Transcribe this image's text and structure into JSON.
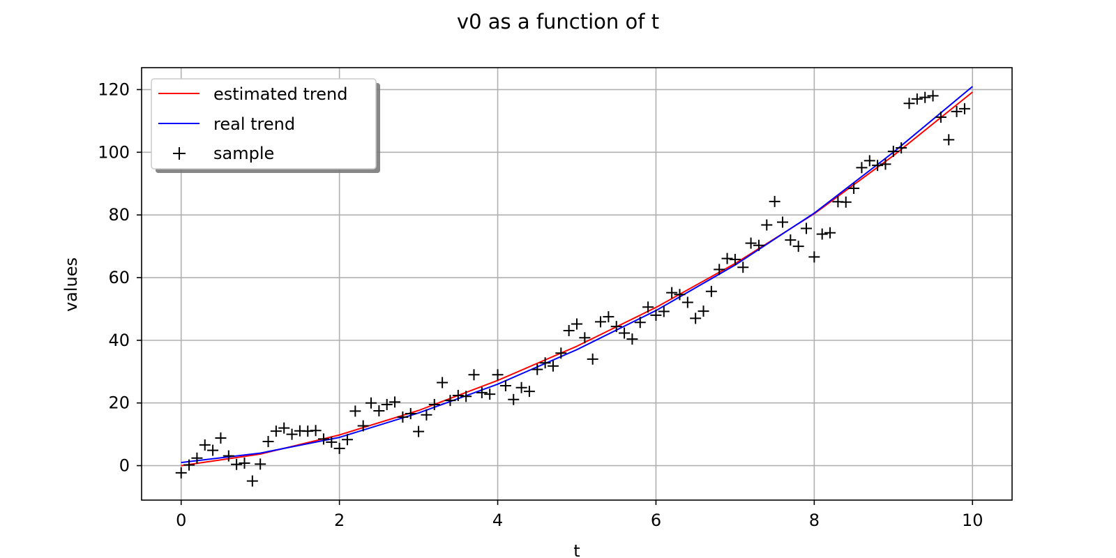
{
  "chart_data": {
    "type": "line",
    "title": "v0 as a function of t",
    "xlabel": "t",
    "ylabel": "values",
    "xlim": [
      -0.5,
      10.5
    ],
    "ylim": [
      -11,
      127
    ],
    "xticks": [
      0,
      2,
      4,
      6,
      8,
      10
    ],
    "yticks": [
      0,
      20,
      40,
      60,
      80,
      100,
      120
    ],
    "grid": true,
    "legend_position": "top-left",
    "series": [
      {
        "name": "estimated trend",
        "kind": "line",
        "color": "#ff0000",
        "x": [
          0,
          1,
          2,
          3,
          4,
          5,
          6,
          7,
          8,
          9,
          10
        ],
        "values": [
          0,
          3.7,
          9.8,
          17.6,
          27.2,
          38.1,
          50.5,
          64.5,
          80.4,
          98.9,
          119.2
        ]
      },
      {
        "name": "real trend",
        "kind": "line",
        "color": "#0000ff",
        "x": [
          0,
          1,
          2,
          3,
          4,
          5,
          6,
          7,
          8,
          9,
          10
        ],
        "values": [
          1,
          4,
          9,
          16.8,
          26,
          37,
          49.5,
          64,
          80.6,
          100,
          121
        ]
      },
      {
        "name": "sample",
        "kind": "scatter",
        "marker": "+",
        "color": "#000000",
        "x": [
          0,
          0.1,
          0.2,
          0.3,
          0.4,
          0.5,
          0.6,
          0.7,
          0.8,
          0.9,
          1.0,
          1.1,
          1.2,
          1.3,
          1.4,
          1.5,
          1.6,
          1.7,
          1.8,
          1.9,
          2.0,
          2.1,
          2.2,
          2.3,
          2.4,
          2.5,
          2.6,
          2.7,
          2.8,
          2.9,
          3.0,
          3.1,
          3.2,
          3.3,
          3.4,
          3.5,
          3.6,
          3.7,
          3.8,
          3.9,
          4.0,
          4.1,
          4.2,
          4.3,
          4.4,
          4.5,
          4.6,
          4.7,
          4.8,
          4.9,
          5.0,
          5.1,
          5.2,
          5.3,
          5.4,
          5.5,
          5.6,
          5.7,
          5.8,
          5.9,
          6.0,
          6.1,
          6.2,
          6.3,
          6.4,
          6.5,
          6.6,
          6.7,
          6.8,
          6.9,
          7.0,
          7.1,
          7.2,
          7.3,
          7.4,
          7.5,
          7.6,
          7.7,
          7.8,
          7.9,
          8.0,
          8.1,
          8.2,
          8.3,
          8.4,
          8.5,
          8.6,
          8.7,
          8.8,
          8.9,
          9.0,
          9.1,
          9.2,
          9.3,
          9.4,
          9.5,
          9.6,
          9.7,
          9.8,
          9.9
        ],
        "values": [
          -2.3,
          0.2,
          2.4,
          6.6,
          4.9,
          8.8,
          3.1,
          0.4,
          0.8,
          -4.9,
          0.5,
          7.7,
          11.0,
          12.0,
          10.0,
          11.1,
          11.0,
          11.2,
          8.5,
          7.5,
          5.5,
          8.3,
          17.4,
          12.7,
          20.0,
          17.5,
          19.5,
          20.3,
          15.5,
          16.6,
          10.9,
          16.2,
          19.5,
          26.5,
          20.8,
          22.4,
          22.1,
          29.0,
          23.3,
          22.8,
          29.0,
          25.5,
          21.1,
          24.9,
          23.7,
          30.7,
          32.8,
          31.8,
          35.9,
          43.1,
          45.2,
          40.8,
          34.0,
          45.9,
          47.5,
          44.4,
          42.3,
          40.4,
          45.7,
          50.6,
          48.0,
          49.2,
          55.2,
          54.6,
          52.1,
          47.0,
          49.3,
          55.6,
          62.6,
          66.1,
          65.8,
          63.3,
          71.0,
          70.3,
          76.8,
          84.3,
          77.7,
          72.0,
          70.0,
          75.7,
          66.6,
          73.9,
          74.3,
          84.2,
          84.1,
          88.5,
          95.1,
          97.3,
          95.8,
          96.2,
          100.3,
          101.4,
          115.6,
          117.0,
          117.5,
          118.0,
          111.2,
          104.0,
          113.0,
          113.9
        ]
      }
    ]
  }
}
